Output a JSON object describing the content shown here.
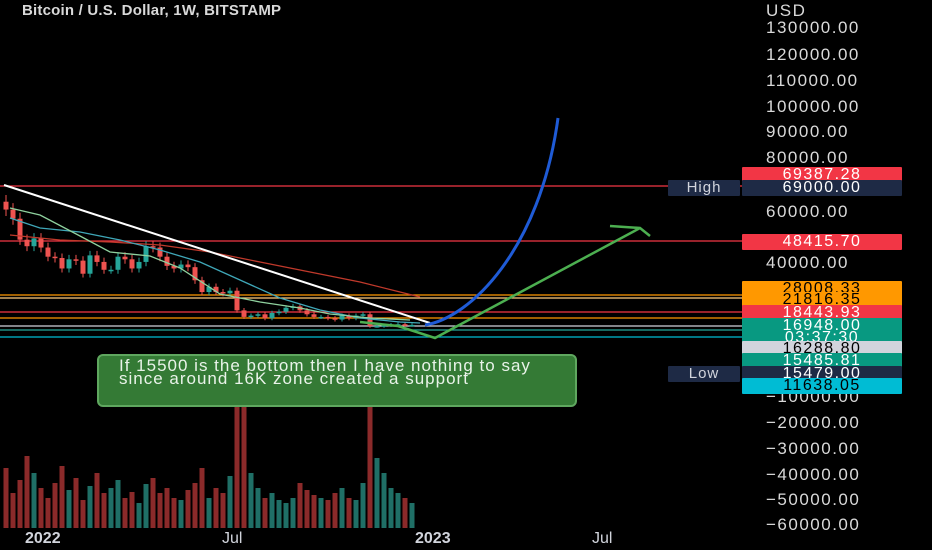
{
  "header": {
    "title": "Bitcoin / U.S. Dollar, 1W, BITSTAMP"
  },
  "colors": {
    "background": "#000000",
    "bull": "#26a69a",
    "bear": "#ef5350",
    "accent_blue": "#1f5bd6",
    "annotation_green": "#347a35"
  },
  "price_axis": {
    "currency_label": "USD",
    "ticks": [
      {
        "label": "130000.00",
        "value": 130000
      },
      {
        "label": "120000.00",
        "value": 120000
      },
      {
        "label": "110000.00",
        "value": 110000
      },
      {
        "label": "100000.00",
        "value": 100000
      },
      {
        "label": "90000.00",
        "value": 90000
      },
      {
        "label": "80000.00",
        "value": 80000
      },
      {
        "label": "60000.00",
        "value": 60000
      },
      {
        "label": "40000.00",
        "value": 40000
      },
      {
        "label": "−10000.00",
        "value": -10000
      },
      {
        "label": "−20000.00",
        "value": -20000
      },
      {
        "label": "−30000.00",
        "value": -30000
      },
      {
        "label": "−40000.00",
        "value": -40000
      },
      {
        "label": "−50000.00",
        "value": -50000
      },
      {
        "label": "−60000.00",
        "value": -60000
      }
    ]
  },
  "price_labels": [
    {
      "text": "69387.28",
      "bg": "#f23645",
      "fg": "#ffffff",
      "value": 69387.28
    },
    {
      "text": "69000.00",
      "bg": "#1e2a45",
      "fg": "#ffffff",
      "value": 69000.0,
      "tag": "High"
    },
    {
      "text": "48415.70",
      "bg": "#f23645",
      "fg": "#ffffff",
      "value": 48415.7
    },
    {
      "text": "28008.33",
      "bg": "#ff9800",
      "fg": "#000000",
      "value": 28008.33
    },
    {
      "text": "21816.35",
      "bg": "#ff9800",
      "fg": "#000000",
      "value": 21816.35
    },
    {
      "text": "18443.93",
      "bg": "#f23645",
      "fg": "#ffffff",
      "value": 18443.93
    },
    {
      "text": "16948.00",
      "bg": "#089981",
      "fg": "#ffffff",
      "value": 16948.0
    },
    {
      "text": "03:37:30",
      "bg": "#089981",
      "fg": "#ffffff"
    },
    {
      "text": "16288.80",
      "bg": "#d1d4dc",
      "fg": "#000000",
      "value": 16288.8
    },
    {
      "text": "15485.81",
      "bg": "#089981",
      "fg": "#ffffff",
      "value": 15485.81
    },
    {
      "text": "15479.00",
      "bg": "#1e2a45",
      "fg": "#ffffff",
      "value": 15479.0,
      "tag": "Low"
    },
    {
      "text": "11638.05",
      "bg": "#00bcd4",
      "fg": "#000000",
      "value": 11638.05
    }
  ],
  "time_axis": {
    "ticks": [
      {
        "label": "2022"
      },
      {
        "label": "Jul"
      },
      {
        "label": "2023"
      },
      {
        "label": "Jul"
      }
    ]
  },
  "annotation": {
    "text": "If 15500 is the bottom then I have nothing to say since around 16K zone created a support"
  },
  "chart_data": {
    "type": "candlestick",
    "title": "Bitcoin / U.S. Dollar, 1W, BITSTAMP",
    "price_unit": "USD",
    "weekly_close_approx": [
      61000,
      57500,
      49500,
      47000,
      50000,
      46500,
      43000,
      42500,
      38500,
      42000,
      41500,
      36500,
      43500,
      41000,
      38000,
      38000,
      43000,
      42000,
      38500,
      41000,
      47000,
      46500,
      43000,
      39500,
      38500,
      40000,
      39000,
      34000,
      29500,
      31500,
      29500,
      29000,
      30000,
      22500,
      20000,
      20500,
      21000,
      19500,
      21500,
      22000,
      23500,
      24000,
      22500,
      21000,
      20000,
      20000,
      19500,
      19000,
      20500,
      19500,
      20500,
      21000,
      16500,
      16500,
      16800,
      17000,
      17200,
      16900,
      16950
    ],
    "horizontal_levels": [
      69387.28,
      48415.7,
      28008.33,
      21816.35,
      18443.93,
      16288.8,
      15485.81,
      11638.05
    ],
    "high": 69000.0,
    "low": 15479.0
  }
}
